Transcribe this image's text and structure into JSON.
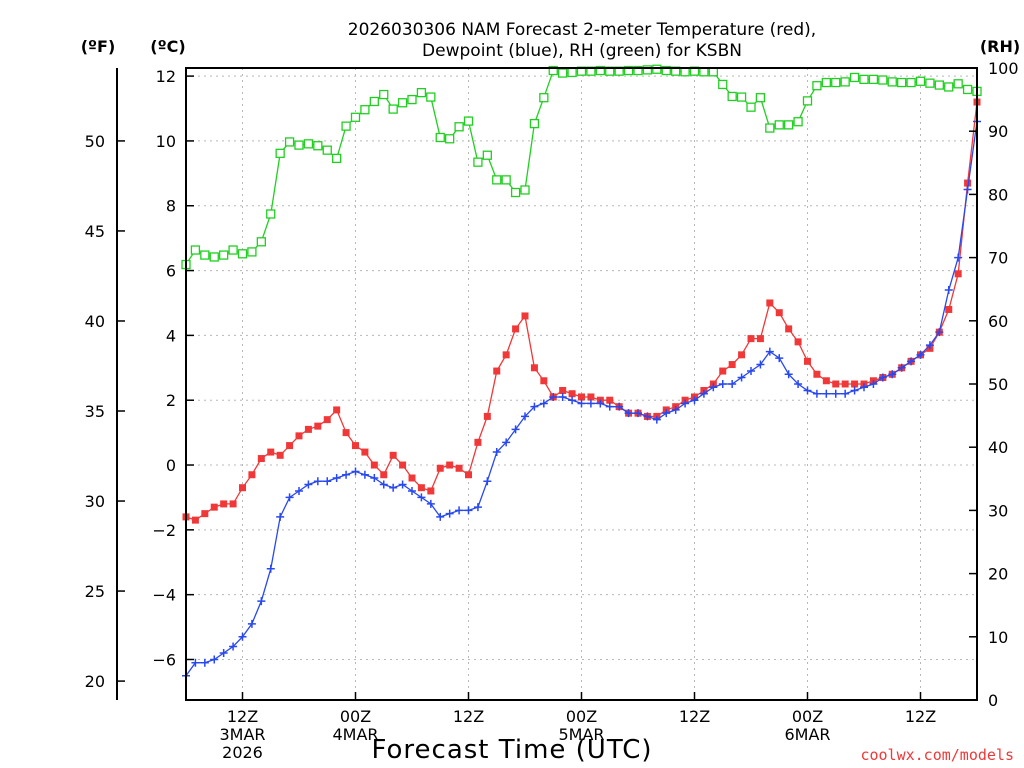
{
  "chart_data": {
    "type": "line",
    "title_lines": [
      "2026030306 NAM Forecast 2-meter Temperature (red),",
      "Dewpoint (blue), RH (green) for KSBN"
    ],
    "xlabel": "Forecast Time (UTC)",
    "credit": "coolwx.com/models",
    "units": {
      "fahrenheit": "(ºF)",
      "celsius": "(ºC)",
      "rh": "(RH)"
    },
    "x_range_hours": [
      0,
      84
    ],
    "x_step_hours": 1,
    "celsius_axis": {
      "min": -7.25,
      "max": 12.25,
      "ticks": [
        12,
        10,
        8,
        6,
        4,
        2,
        0,
        -2,
        -4,
        -6
      ]
    },
    "fahrenheit_ticks": [
      50,
      45,
      40,
      35,
      30,
      25,
      20
    ],
    "rh_axis": {
      "min": 0,
      "max": 100,
      "ticks": [
        100,
        90,
        80,
        70,
        60,
        50,
        40,
        30,
        20,
        10,
        0
      ]
    },
    "x_ticks": [
      {
        "hour": 6,
        "lines": [
          "12Z",
          "3MAR",
          "2026"
        ]
      },
      {
        "hour": 18,
        "lines": [
          "00Z",
          "4MAR"
        ]
      },
      {
        "hour": 30,
        "lines": [
          "12Z"
        ]
      },
      {
        "hour": 42,
        "lines": [
          "00Z",
          "5MAR"
        ]
      },
      {
        "hour": 54,
        "lines": [
          "12Z"
        ]
      },
      {
        "hour": 66,
        "lines": [
          "00Z",
          "6MAR"
        ]
      },
      {
        "hour": 78,
        "lines": [
          "12Z"
        ]
      }
    ],
    "colors": {
      "temperature": "#f03838",
      "dewpoint": "#2848f0",
      "rh": "#20d020",
      "grid": "#b8b8b8"
    },
    "series": [
      {
        "name": "Temperature (°C)",
        "color": "#f03838",
        "marker": "filled-square",
        "values": [
          -1.6,
          -1.7,
          -1.5,
          -1.3,
          -1.2,
          -1.2,
          -0.7,
          -0.3,
          0.2,
          0.4,
          0.3,
          0.6,
          0.9,
          1.1,
          1.2,
          1.4,
          1.7,
          1.0,
          0.6,
          0.4,
          0.0,
          -0.3,
          0.3,
          0.0,
          -0.4,
          -0.7,
          -0.8,
          -0.1,
          0.0,
          -0.1,
          -0.3,
          0.7,
          1.5,
          2.9,
          3.4,
          4.2,
          4.6,
          3.0,
          2.6,
          2.1,
          2.3,
          2.2,
          2.1,
          2.1,
          2.0,
          2.0,
          1.8,
          1.6,
          1.6,
          1.5,
          1.5,
          1.7,
          1.8,
          2.0,
          2.1,
          2.3,
          2.5,
          2.9,
          3.1,
          3.4,
          3.9,
          3.9,
          5.0,
          4.7,
          4.2,
          3.8,
          3.2,
          2.8,
          2.6,
          2.5,
          2.5,
          2.5,
          2.5,
          2.6,
          2.7,
          2.8,
          3.0,
          3.2,
          3.4,
          3.6,
          4.1,
          4.8,
          5.9,
          8.7,
          11.2
        ]
      },
      {
        "name": "Dewpoint (°C)",
        "color": "#2848f0",
        "marker": "plus",
        "values": [
          -6.5,
          -6.1,
          -6.1,
          -6.0,
          -5.8,
          -5.6,
          -5.3,
          -4.9,
          -4.2,
          -3.2,
          -1.6,
          -1.0,
          -0.8,
          -0.6,
          -0.5,
          -0.5,
          -0.4,
          -0.3,
          -0.2,
          -0.3,
          -0.4,
          -0.6,
          -0.7,
          -0.6,
          -0.8,
          -1.0,
          -1.2,
          -1.6,
          -1.5,
          -1.4,
          -1.4,
          -1.3,
          -0.5,
          0.4,
          0.7,
          1.1,
          1.5,
          1.8,
          1.9,
          2.1,
          2.1,
          2.0,
          1.9,
          1.9,
          1.9,
          1.8,
          1.8,
          1.6,
          1.6,
          1.5,
          1.4,
          1.6,
          1.7,
          1.9,
          2.0,
          2.2,
          2.4,
          2.5,
          2.5,
          2.7,
          2.9,
          3.1,
          3.5,
          3.3,
          2.8,
          2.5,
          2.3,
          2.2,
          2.2,
          2.2,
          2.2,
          2.3,
          2.4,
          2.5,
          2.7,
          2.8,
          3.0,
          3.2,
          3.4,
          3.7,
          4.1,
          5.4,
          6.4,
          8.5,
          10.6
        ]
      },
      {
        "name": "RH (%)",
        "color": "#20d020",
        "marker": "open-square",
        "values": [
          68.9,
          71.2,
          70.4,
          70.1,
          70.4,
          71.2,
          70.6,
          70.9,
          72.5,
          76.9,
          86.5,
          88.3,
          87.8,
          88.0,
          87.7,
          87.0,
          85.7,
          90.8,
          92.2,
          93.4,
          94.7,
          95.8,
          93.5,
          94.5,
          95.0,
          96.1,
          95.4,
          89.0,
          88.8,
          90.7,
          91.6,
          85.1,
          86.2,
          82.3,
          82.3,
          80.3,
          80.7,
          91.2,
          95.3,
          99.6,
          99.2,
          99.3,
          99.5,
          99.5,
          99.6,
          99.5,
          99.5,
          99.6,
          99.6,
          99.7,
          99.8,
          99.6,
          99.5,
          99.4,
          99.5,
          99.4,
          99.4,
          97.4,
          95.5,
          95.4,
          93.8,
          95.3,
          90.5,
          91.0,
          91.0,
          91.5,
          94.8,
          97.2,
          97.7,
          97.7,
          97.8,
          98.5,
          98.2,
          98.2,
          98.1,
          97.8,
          97.7,
          97.7,
          97.9,
          97.6,
          97.3,
          97.0,
          97.5,
          96.6,
          96.3
        ]
      }
    ]
  }
}
